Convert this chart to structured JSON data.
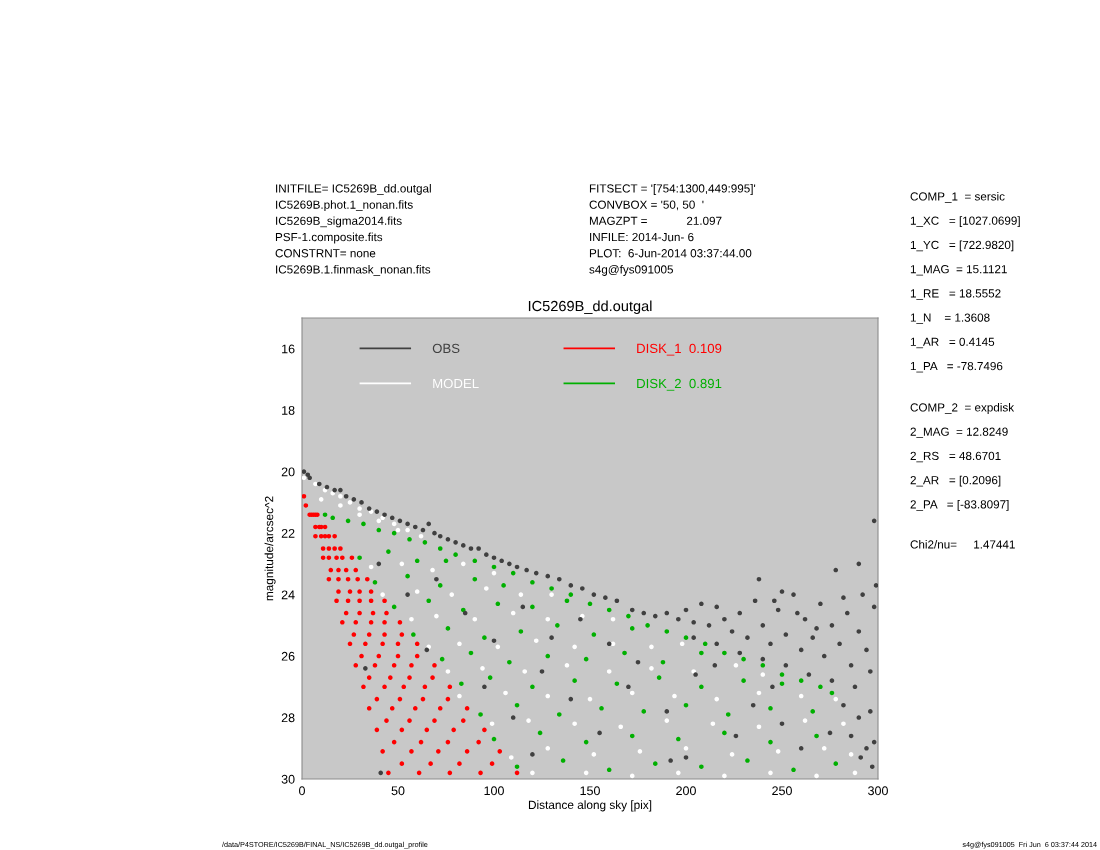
{
  "chart_data": {
    "type": "scatter",
    "title": "IC5269B_dd.outgal",
    "xlabel": "Distance along sky [pix]",
    "ylabel": "magnitude/arcsec^2",
    "xlim": [
      0,
      300
    ],
    "ylim": [
      30,
      15
    ],
    "xticks": [
      0,
      50,
      100,
      150,
      200,
      250,
      300
    ],
    "yticks": [
      16,
      18,
      20,
      22,
      24,
      26,
      28,
      30
    ],
    "legend": "top left",
    "marker": "circle",
    "series": [
      {
        "name": "OBS",
        "color": "#404040",
        "x": [
          1,
          3,
          4,
          9,
          13,
          17,
          20,
          23,
          27,
          31,
          35,
          39,
          43,
          47,
          51,
          55,
          59,
          63,
          66,
          69,
          72,
          76,
          80,
          84,
          88,
          92,
          96,
          100,
          104,
          108,
          112,
          117,
          122,
          128,
          134,
          140,
          146,
          152,
          158,
          164,
          172,
          178,
          184,
          190,
          196,
          200,
          204,
          208,
          212,
          216,
          220,
          224,
          228,
          232,
          236,
          240,
          244,
          248,
          252,
          256,
          260,
          262,
          266,
          270,
          272,
          276,
          280,
          284,
          286,
          290,
          294,
          298,
          204,
          216,
          228,
          240,
          252,
          264,
          276,
          288,
          296,
          246,
          258,
          268,
          282,
          292,
          238,
          250,
          278,
          290,
          298,
          299,
          282,
          290,
          296,
          286,
          294,
          297,
          298,
          291,
          275,
          40,
          55,
          70,
          85,
          100,
          115,
          130,
          145,
          160,
          175,
          125,
          95,
          110,
          140,
          155,
          170,
          190,
          205,
          226,
          235,
          250,
          260,
          192,
          120,
          200,
          65,
          33,
          41,
          215,
          245
        ],
        "values": [
          20.0,
          20.1,
          20.2,
          20.4,
          20.5,
          20.6,
          20.6,
          20.8,
          20.9,
          21.0,
          21.2,
          21.3,
          21.4,
          21.5,
          21.6,
          21.7,
          21.8,
          21.9,
          21.7,
          22.0,
          22.1,
          22.2,
          22.3,
          22.4,
          22.5,
          22.5,
          22.7,
          22.8,
          22.9,
          23.0,
          23.1,
          23.2,
          23.3,
          23.4,
          23.5,
          23.7,
          23.8,
          24.0,
          24.1,
          24.2,
          24.5,
          24.6,
          24.7,
          24.6,
          24.8,
          24.5,
          24.9,
          24.3,
          25.0,
          24.4,
          24.8,
          25.2,
          24.6,
          25.4,
          24.2,
          25.0,
          25.6,
          24.5,
          25.3,
          24.0,
          25.8,
          24.8,
          25.4,
          24.3,
          26.0,
          25.0,
          25.6,
          24.6,
          26.3,
          25.2,
          25.8,
          24.4,
          25.4,
          25.6,
          25.9,
          26.1,
          26.3,
          26.6,
          26.8,
          27.0,
          26.5,
          24.2,
          24.6,
          25.1,
          24.1,
          24.0,
          23.5,
          23.9,
          23.2,
          23.0,
          21.6,
          23.7,
          27.6,
          28.0,
          27.8,
          28.6,
          29.0,
          29.6,
          28.8,
          29.3,
          28.5,
          23.0,
          24.0,
          23.5,
          24.6,
          25.5,
          24.4,
          25.4,
          24.8,
          25.6,
          26.2,
          26.5,
          27.0,
          28.0,
          27.4,
          28.5,
          27.0,
          27.8,
          26.6,
          28.6,
          27.6,
          28.2,
          29.0,
          29.4,
          29.2,
          29.3,
          25.8,
          26.4,
          29.8,
          26.3,
          27.0
        ]
      },
      {
        "name": "MODEL",
        "color": "#ffffff",
        "x": [
          1,
          7,
          12,
          16,
          20,
          25,
          30,
          36,
          42,
          48,
          55,
          62,
          10,
          20,
          30,
          40,
          50,
          36,
          52,
          68,
          84,
          100,
          42,
          60,
          78,
          96,
          114,
          130,
          57,
          70,
          90,
          110,
          128,
          146,
          162,
          66,
          82,
          102,
          122,
          142,
          162,
          182,
          198,
          76,
          94,
          116,
          138,
          160,
          182,
          204,
          226,
          240,
          82,
          106,
          128,
          150,
          172,
          194,
          216,
          238,
          260,
          278,
          99,
          118,
          142,
          166,
          190,
          214,
          238,
          262,
          282,
          109,
          128,
          152,
          176,
          200,
          224,
          248,
          272,
          286,
          120,
          148,
          172,
          196,
          220,
          244,
          268,
          288
        ],
        "values": [
          20.2,
          20.4,
          20.6,
          20.7,
          20.8,
          21.0,
          21.2,
          21.3,
          21.5,
          21.7,
          21.9,
          22.1,
          20.9,
          21.1,
          21.4,
          21.6,
          21.9,
          23.1,
          23.0,
          23.2,
          23.0,
          23.3,
          24.0,
          23.9,
          24.0,
          23.8,
          24.0,
          24.0,
          24.8,
          24.7,
          24.8,
          24.6,
          24.8,
          24.7,
          24.8,
          25.7,
          25.6,
          25.7,
          25.5,
          25.7,
          25.6,
          25.7,
          25.6,
          26.5,
          26.4,
          26.5,
          26.3,
          26.5,
          26.4,
          26.5,
          26.3,
          26.6,
          27.3,
          27.2,
          27.3,
          27.4,
          27.2,
          27.3,
          27.4,
          27.2,
          27.3,
          27.4,
          28.2,
          28.1,
          28.2,
          28.3,
          28.1,
          28.2,
          28.3,
          28.1,
          28.2,
          29.3,
          29.0,
          29.2,
          29.1,
          29.0,
          29.2,
          29.1,
          29.0,
          29.2,
          29.8,
          29.8,
          29.9,
          29.8,
          29.9,
          29.8,
          29.9,
          29.8
        ]
      },
      {
        "name": "DISK_1  0.109",
        "color": "#ff0000",
        "x": [
          1,
          2,
          4,
          7,
          11,
          14,
          18,
          21,
          25,
          28,
          32,
          35,
          39,
          42,
          45,
          5,
          10,
          14,
          19,
          24,
          28,
          33,
          38,
          43,
          47,
          52,
          57,
          61,
          6,
          12,
          18,
          24,
          30,
          36,
          42,
          48,
          53,
          59,
          65,
          71,
          77,
          7,
          14,
          21,
          29,
          36,
          43,
          50,
          57,
          64,
          72,
          79,
          86,
          93,
          8,
          17,
          26,
          34,
          43,
          51,
          60,
          69,
          77,
          86,
          95,
          103,
          112,
          7,
          11,
          15,
          19,
          23,
          27,
          31,
          35,
          39,
          44,
          48,
          52,
          9,
          14,
          19,
          25,
          30,
          35,
          40,
          46,
          51,
          56,
          62,
          67,
          10,
          17,
          23,
          30,
          37,
          43,
          50,
          56,
          63,
          69,
          76,
          82,
          12,
          20,
          28,
          36,
          44,
          52,
          60,
          68,
          76,
          84,
          92,
          99
        ],
        "values": [
          20.8,
          21.1,
          21.4,
          22.1,
          22.8,
          23.5,
          24.2,
          24.9,
          25.6,
          26.3,
          27.0,
          27.7,
          28.4,
          29.1,
          29.8,
          21.4,
          22.1,
          22.8,
          23.5,
          24.2,
          24.9,
          25.6,
          26.3,
          27.0,
          27.7,
          28.4,
          29.1,
          29.8,
          21.4,
          22.1,
          22.8,
          23.5,
          24.2,
          24.9,
          25.6,
          26.3,
          27.0,
          27.7,
          28.4,
          29.1,
          29.8,
          21.4,
          22.1,
          22.8,
          23.5,
          24.2,
          24.9,
          25.6,
          26.3,
          27.0,
          27.7,
          28.4,
          29.1,
          29.8,
          21.4,
          22.1,
          22.8,
          23.5,
          24.2,
          24.9,
          25.6,
          26.3,
          27.0,
          27.7,
          28.4,
          29.1,
          29.8,
          21.8,
          22.5,
          23.2,
          23.9,
          24.6,
          25.3,
          26.0,
          26.7,
          27.4,
          28.1,
          28.8,
          29.5,
          21.8,
          22.5,
          23.2,
          23.9,
          24.6,
          25.3,
          26.0,
          26.7,
          27.4,
          28.1,
          28.8,
          29.5,
          21.8,
          22.5,
          23.2,
          23.9,
          24.6,
          25.3,
          26.0,
          26.7,
          27.4,
          28.1,
          28.8,
          29.5,
          21.8,
          22.5,
          23.2,
          23.9,
          24.6,
          25.3,
          26.0,
          26.7,
          27.4,
          28.1,
          28.8,
          29.5
        ]
      },
      {
        "name": "DISK_2  0.891",
        "color": "#00b000",
        "x": [
          12,
          16,
          24,
          32,
          40,
          48,
          56,
          64,
          72,
          80,
          90,
          100,
          110,
          120,
          130,
          140,
          150,
          160,
          170,
          180,
          190,
          200,
          210,
          220,
          230,
          240,
          250,
          260,
          270,
          276,
          30,
          45,
          60,
          75,
          38,
          55,
          72,
          90,
          105,
          48,
          66,
          84,
          102,
          120,
          138,
          58,
          76,
          95,
          114,
          133,
          152,
          172,
          73,
          88,
          108,
          128,
          148,
          168,
          188,
          208,
          83,
          98,
          120,
          142,
          164,
          186,
          208,
          230,
          250,
          93,
          112,
          134,
          156,
          178,
          200,
          222,
          244,
          266,
          100,
          124,
          148,
          172,
          196,
          220,
          244,
          268,
          112,
          136,
          160,
          184,
          208,
          232,
          256,
          278
        ],
        "values": [
          21.4,
          21.5,
          21.6,
          21.7,
          21.9,
          22.0,
          22.2,
          22.3,
          22.5,
          22.7,
          22.9,
          23.1,
          23.3,
          23.6,
          23.8,
          24.0,
          24.3,
          24.5,
          24.7,
          25.0,
          25.2,
          25.4,
          25.6,
          25.9,
          26.1,
          26.3,
          26.6,
          26.8,
          27.0,
          27.2,
          22.8,
          22.6,
          22.9,
          22.9,
          23.6,
          23.4,
          23.7,
          23.5,
          23.7,
          24.4,
          24.2,
          24.5,
          24.3,
          24.4,
          24.2,
          25.3,
          25.1,
          25.4,
          25.2,
          25.0,
          25.3,
          25.1,
          26.1,
          25.9,
          26.2,
          26.0,
          26.1,
          25.9,
          26.2,
          25.9,
          26.9,
          26.7,
          27.0,
          26.8,
          26.9,
          26.7,
          27.0,
          26.8,
          26.9,
          27.9,
          27.6,
          27.9,
          27.7,
          27.8,
          27.6,
          27.9,
          27.7,
          27.8,
          28.7,
          28.5,
          28.8,
          28.6,
          28.7,
          28.5,
          28.8,
          28.6,
          29.6,
          29.4,
          29.7,
          29.5,
          29.6,
          29.4,
          29.7,
          29.5
        ]
      }
    ],
    "annotations": [
      "INITFILE= IC5269B_dd.outgal\nIC5269B.phot.1_nonan.fits\nIC5269B_sigma2014.fits\nPSF-1.composite.fits\nCONSTRNT= none\nIC5269B.1.finmask_nonan.fits",
      "FITSECT = '[754:1300,449:995]'\nCONVBOX = '50, 50  '\nMAGZPT =            21.097\nINFILE: 2014-Jun- 6\nPLOT:  6-Jun-2014 03:37:44.00\ns4g@fys091005",
      "COMP_1  = sersic\n1_XC   = [1027.0699]\n1_YC   = [722.9820]\n1_MAG  = 15.1121\n1_RE   = 18.5552\n1_N    = 1.3608\n1_AR   = 0.4145\n1_PA   = -78.7496",
      "COMP_2  = expdisk\n2_MAG  = 12.8249\n2_RS   = 48.6701\n2_AR   = [0.2096]\n2_PA   = [-83.8097]",
      "Chi2/nu=     1.47441",
      "/data/P4STORE/IC5269B/FINAL_NS/IC5269B_dd.outgal_profile",
      "s4g@fys091005  Fri Jun  6 03:37:44 2014"
    ]
  }
}
